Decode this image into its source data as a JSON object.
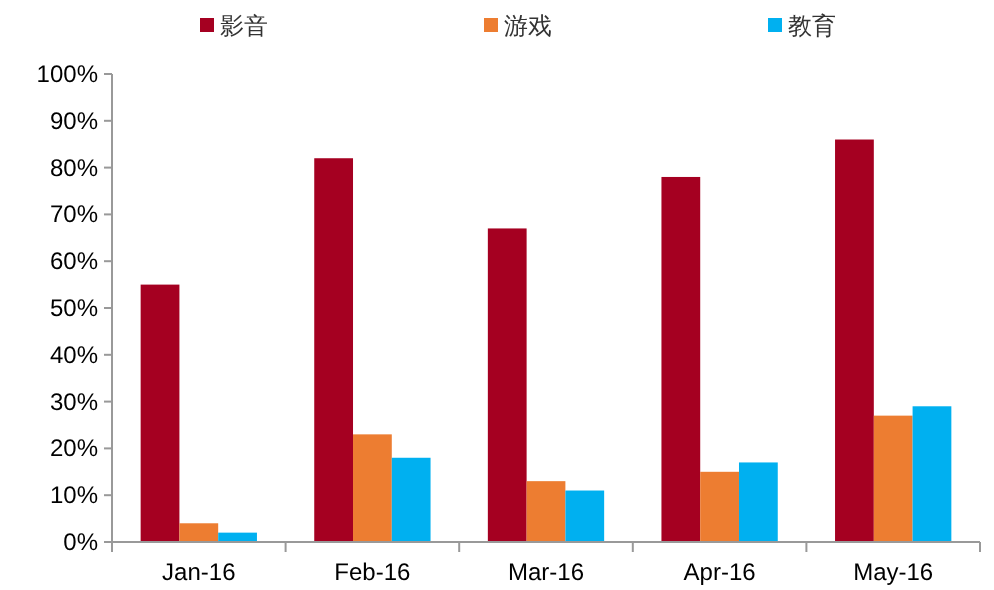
{
  "chart_data": {
    "type": "bar",
    "categories": [
      "Jan-16",
      "Feb-16",
      "Mar-16",
      "Apr-16",
      "May-16"
    ],
    "series": [
      {
        "name": "影音",
        "color": "#a50021",
        "values": [
          55,
          82,
          67,
          78,
          86
        ]
      },
      {
        "name": "游戏",
        "color": "#ed7d31",
        "values": [
          4,
          23,
          13,
          15,
          27
        ]
      },
      {
        "name": "教育",
        "color": "#00b0f0",
        "values": [
          2,
          18,
          11,
          17,
          29
        ]
      }
    ],
    "ylim": [
      0,
      100
    ],
    "yticks": [
      {
        "value": 0,
        "label": "0%"
      },
      {
        "value": 10,
        "label": "10%"
      },
      {
        "value": 20,
        "label": "20%"
      },
      {
        "value": 30,
        "label": "30%"
      },
      {
        "value": 40,
        "label": "40%"
      },
      {
        "value": 50,
        "label": "50%"
      },
      {
        "value": 60,
        "label": "60%"
      },
      {
        "value": 70,
        "label": "70%"
      },
      {
        "value": 80,
        "label": "80%"
      },
      {
        "value": 90,
        "label": "90%"
      },
      {
        "value": 100,
        "label": "100%"
      }
    ],
    "grid": false,
    "legend": "top"
  }
}
